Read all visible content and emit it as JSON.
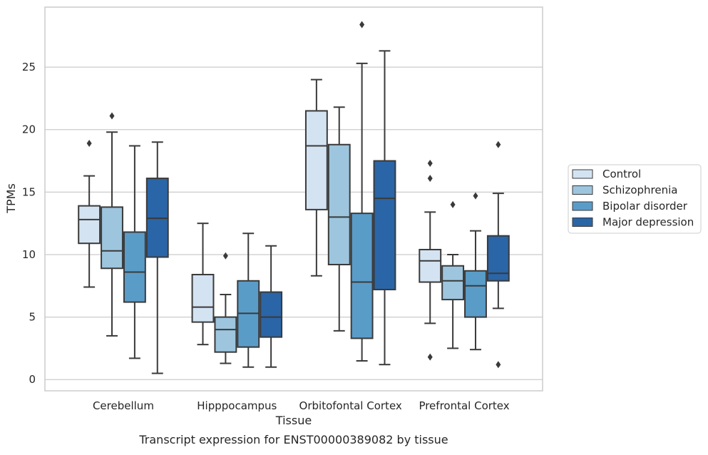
{
  "chart_data": {
    "type": "boxplot",
    "caption": "Transcript expression for ENST00000389082 by tissue",
    "xlabel": "Tissue",
    "ylabel": "TPMs",
    "ylim": [
      -0.9,
      29.8
    ],
    "yticks": [
      0,
      5,
      10,
      15,
      20,
      25
    ],
    "grid": "horizontal",
    "legend_position": "right",
    "categories": [
      "Cerebellum",
      "Hipppocampus",
      "Orbitofontal Cortex",
      "Prefrontal Cortex"
    ],
    "series": [
      {
        "name": "Control",
        "color": "#d4e3f2",
        "boxes": [
          {
            "whisker_low": 7.4,
            "q1": 10.9,
            "median": 12.8,
            "q3": 13.9,
            "whisker_high": 16.3,
            "outliers": [
              18.9
            ]
          },
          {
            "whisker_low": 2.8,
            "q1": 4.6,
            "median": 5.8,
            "q3": 8.4,
            "whisker_high": 12.5,
            "outliers": []
          },
          {
            "whisker_low": 8.3,
            "q1": 13.6,
            "median": 18.7,
            "q3": 21.5,
            "whisker_high": 24.0,
            "outliers": []
          },
          {
            "whisker_low": 4.5,
            "q1": 7.8,
            "median": 9.5,
            "q3": 10.4,
            "whisker_high": 13.4,
            "outliers": [
              17.3,
              16.1,
              1.8
            ]
          }
        ]
      },
      {
        "name": "Schizophrenia",
        "color": "#9dc5de",
        "boxes": [
          {
            "whisker_low": 3.5,
            "q1": 8.9,
            "median": 10.3,
            "q3": 13.8,
            "whisker_high": 19.8,
            "outliers": [
              21.1
            ]
          },
          {
            "whisker_low": 1.3,
            "q1": 2.2,
            "median": 4.0,
            "q3": 5.0,
            "whisker_high": 6.8,
            "outliers": [
              9.9
            ]
          },
          {
            "whisker_low": 3.9,
            "q1": 9.2,
            "median": 13.0,
            "q3": 18.8,
            "whisker_high": 21.8,
            "outliers": []
          },
          {
            "whisker_low": 2.5,
            "q1": 6.4,
            "median": 7.9,
            "q3": 9.1,
            "whisker_high": 10.0,
            "outliers": [
              14.0
            ]
          }
        ]
      },
      {
        "name": "Bipolar disorder",
        "color": "#5a9cc8",
        "boxes": [
          {
            "whisker_low": 1.7,
            "q1": 6.2,
            "median": 8.6,
            "q3": 11.8,
            "whisker_high": 18.7,
            "outliers": []
          },
          {
            "whisker_low": 1.0,
            "q1": 2.6,
            "median": 5.3,
            "q3": 7.9,
            "whisker_high": 11.7,
            "outliers": []
          },
          {
            "whisker_low": 1.5,
            "q1": 3.3,
            "median": 7.8,
            "q3": 13.3,
            "whisker_high": 25.3,
            "outliers": [
              28.4
            ]
          },
          {
            "whisker_low": 2.4,
            "q1": 5.0,
            "median": 7.5,
            "q3": 8.7,
            "whisker_high": 11.9,
            "outliers": [
              14.7
            ]
          }
        ]
      },
      {
        "name": "Major depression",
        "color": "#2a65a7",
        "boxes": [
          {
            "whisker_low": 0.5,
            "q1": 9.8,
            "median": 12.9,
            "q3": 16.1,
            "whisker_high": 19.0,
            "outliers": []
          },
          {
            "whisker_low": 1.0,
            "q1": 3.4,
            "median": 5.0,
            "q3": 7.0,
            "whisker_high": 10.7,
            "outliers": []
          },
          {
            "whisker_low": 1.2,
            "q1": 7.2,
            "median": 14.5,
            "q3": 17.5,
            "whisker_high": 26.3,
            "outliers": []
          },
          {
            "whisker_low": 5.7,
            "q1": 7.9,
            "median": 8.5,
            "q3": 11.5,
            "whisker_high": 14.9,
            "outliers": [
              18.8,
              1.2
            ]
          }
        ]
      }
    ]
  }
}
